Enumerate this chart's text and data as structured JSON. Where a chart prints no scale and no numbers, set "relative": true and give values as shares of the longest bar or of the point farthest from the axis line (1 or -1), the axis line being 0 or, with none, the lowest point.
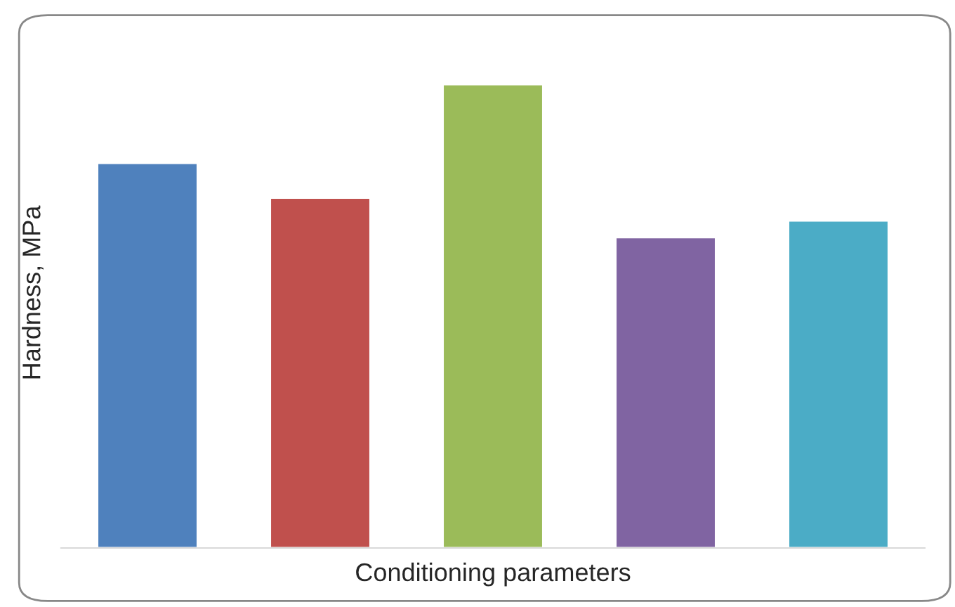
{
  "chart_data": {
    "type": "bar",
    "relative": true,
    "xlabel": "Conditioning parameters",
    "ylabel": "Hardness, MPa",
    "categories": [
      null,
      null,
      null,
      null,
      null
    ],
    "values": [
      0.83,
      0.755,
      1.0,
      0.67,
      0.706
    ],
    "colors": [
      "#4f81bd",
      "#c0504d",
      "#9bbb59",
      "#8064a2",
      "#4bacc6"
    ],
    "grid": false,
    "legend": false
  }
}
